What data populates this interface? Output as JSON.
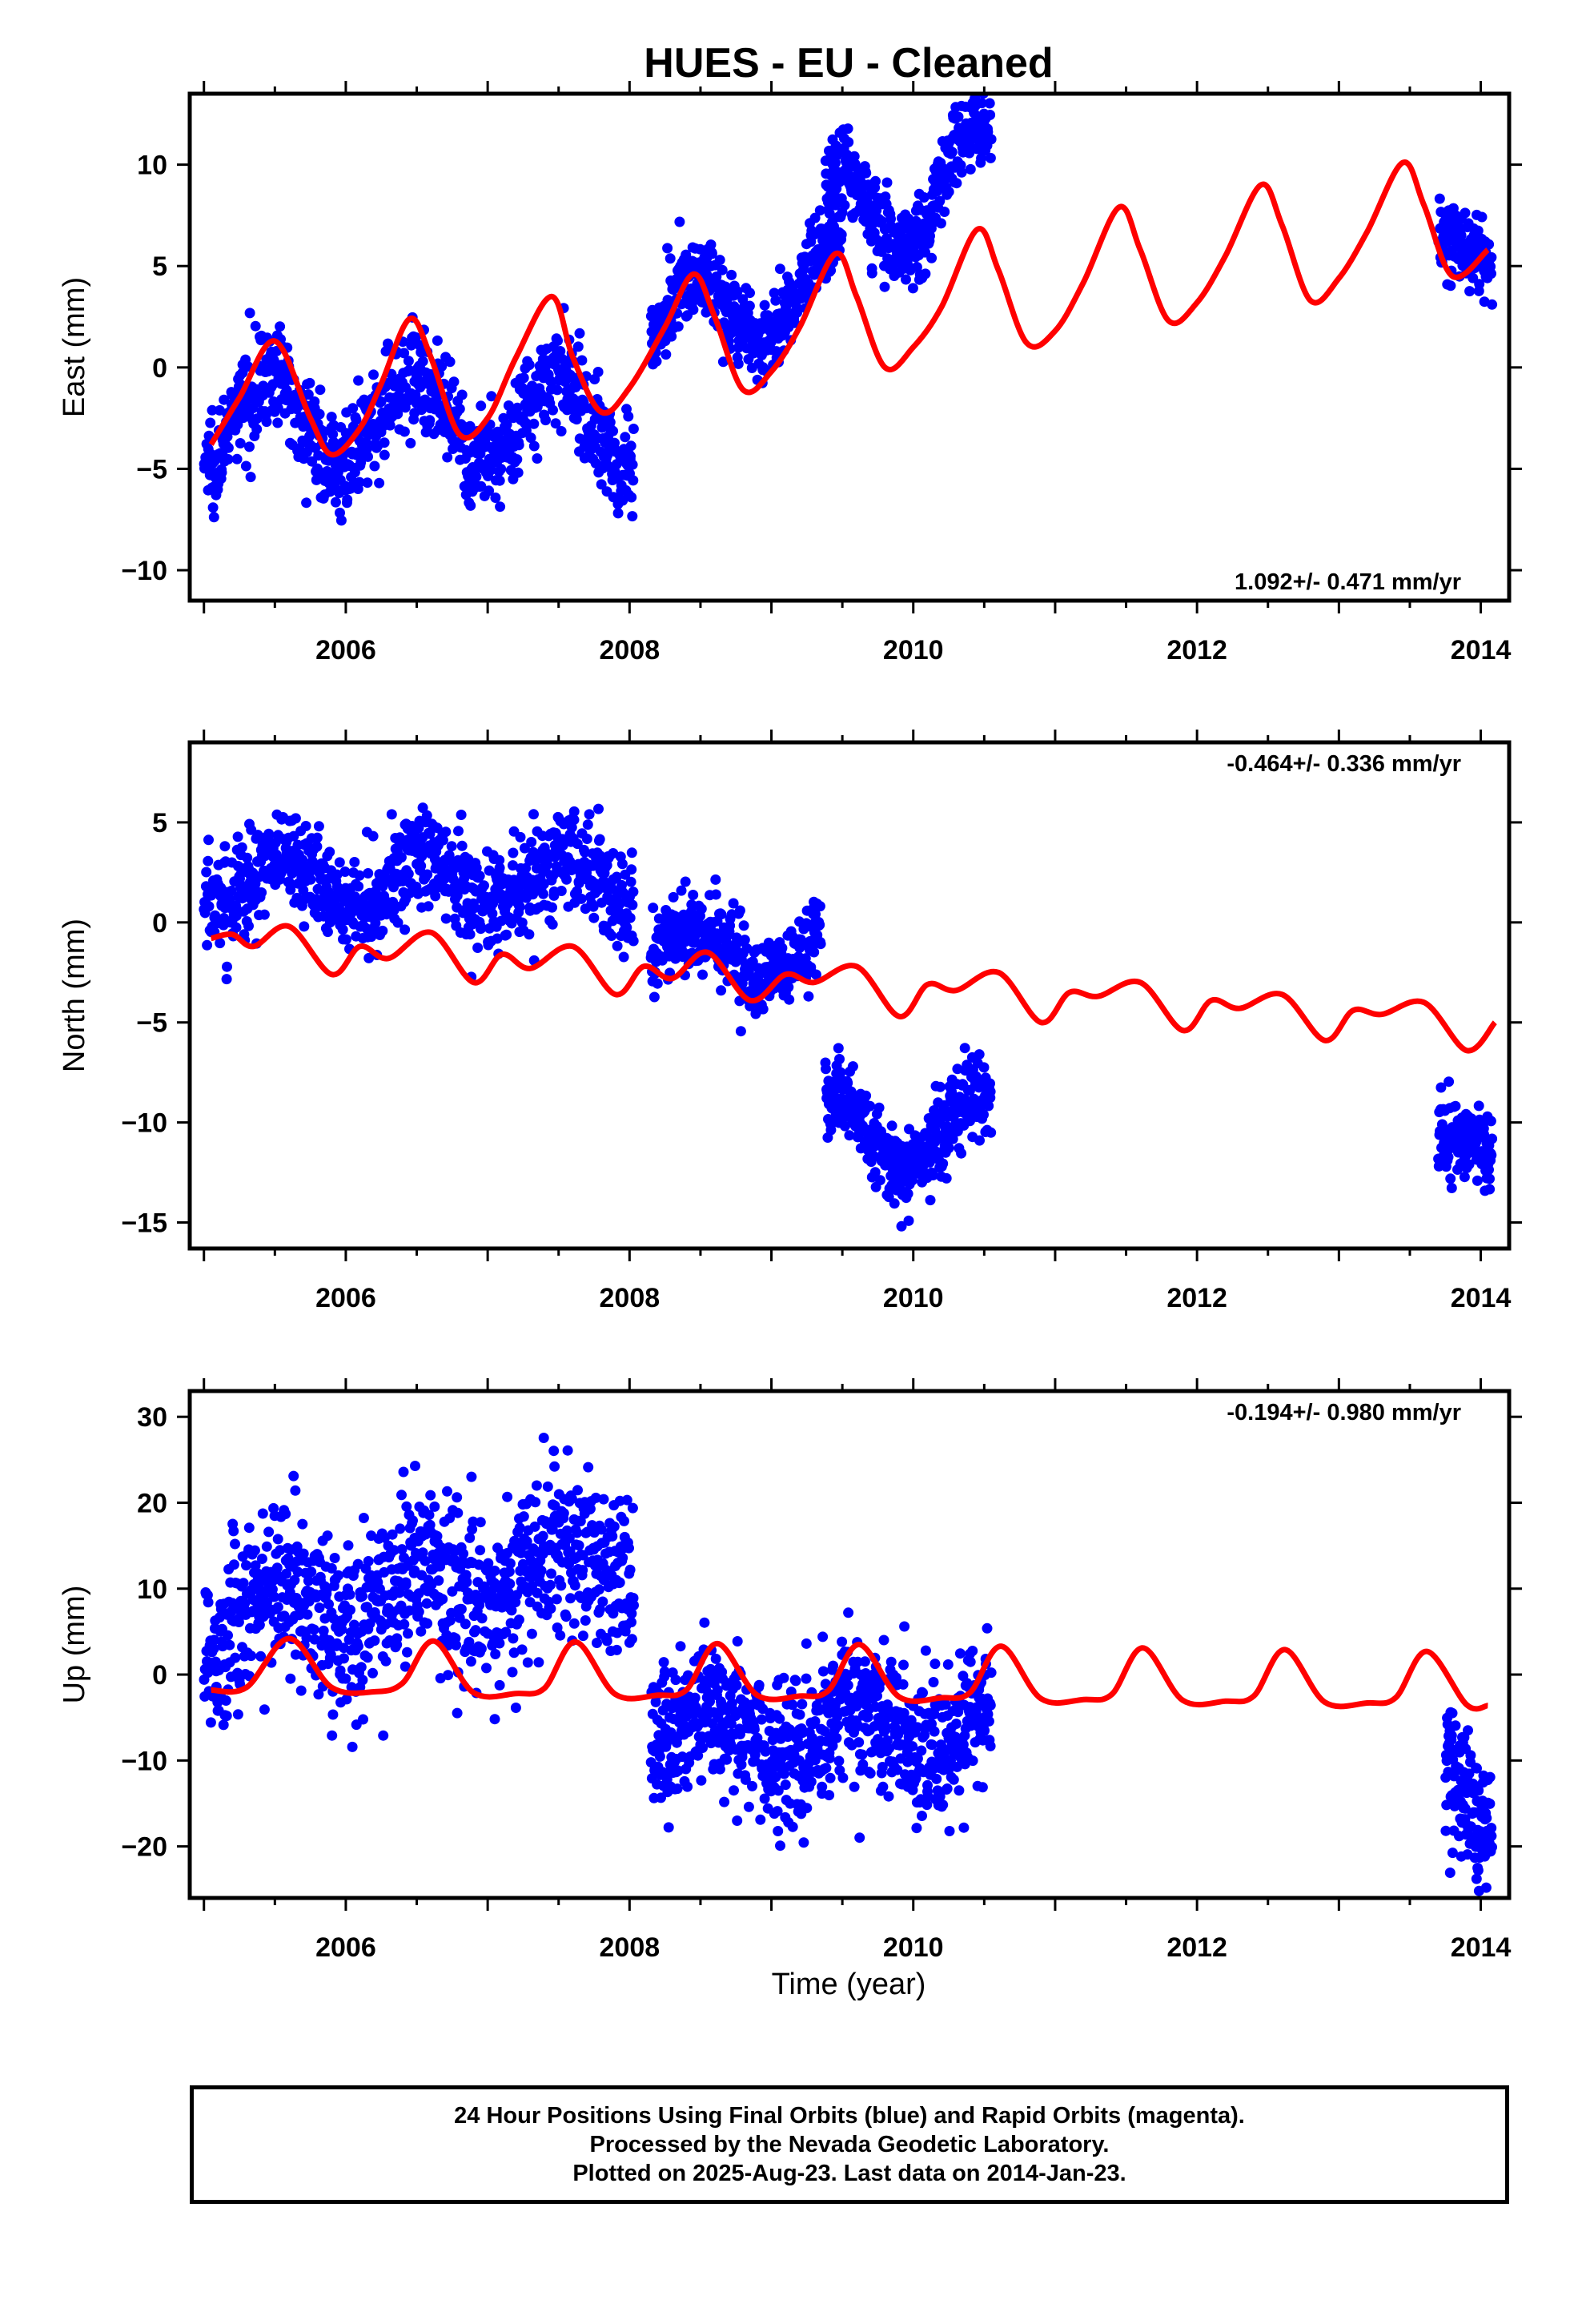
{
  "title": "HUES  - EU - Cleaned",
  "x_axis_title": "Time (year)",
  "colors": {
    "final_orbits": "#0000ff",
    "model": "#ff0000",
    "frame": "#000000"
  },
  "chart_data": [
    {
      "type": "scatter",
      "ylabel": "East (mm)",
      "xlim": [
        2004.9,
        2014.2
      ],
      "ylim": [
        -11.5,
        13.5
      ],
      "x_ticks": [
        2006,
        2008,
        2010,
        2012,
        2014
      ],
      "y_ticks": [
        -10,
        -5,
        0,
        5,
        10
      ],
      "rate": "1.092+/- 0.471 mm/yr",
      "rate_position": "bottom-right",
      "model_line": {
        "x": [
          2005.05,
          2005.25,
          2005.5,
          2005.75,
          2005.9,
          2006.1,
          2006.25,
          2006.45,
          2006.6,
          2006.8,
          2007.0,
          2007.2,
          2007.45,
          2007.6,
          2007.8,
          2008.0,
          2008.25,
          2008.45,
          2008.6,
          2008.8,
          2009.0,
          2009.2,
          2009.45,
          2009.6,
          2009.8,
          2010.0,
          2010.2,
          2010.45,
          2010.6,
          2010.8,
          2011.0,
          2011.2,
          2011.45,
          2011.6,
          2011.8,
          2012.0,
          2012.2,
          2012.45,
          2012.6,
          2012.8,
          2013.0,
          2013.2,
          2013.45,
          2013.6,
          2013.8,
          2014.05
        ],
        "y": [
          -3.8,
          -1.5,
          1.3,
          -2.5,
          -4.3,
          -3.0,
          -0.8,
          2.4,
          0.5,
          -3.3,
          -2.5,
          0.5,
          3.5,
          0.5,
          -2.2,
          -1.0,
          2.0,
          4.6,
          2.5,
          -1.1,
          -0.2,
          2.0,
          5.6,
          3.5,
          0.0,
          1.0,
          3.0,
          6.8,
          4.8,
          1.2,
          1.8,
          4.2,
          7.9,
          5.8,
          2.3,
          3.2,
          5.5,
          9.0,
          7.0,
          3.3,
          4.4,
          6.7,
          10.1,
          8.0,
          4.5,
          5.8
        ]
      },
      "scatter_segments": [
        {
          "x_start": 2005.0,
          "x_end": 2008.03,
          "period_years": 1.0,
          "trend_mm_per_yr": 0.0,
          "offset": -2.6,
          "amplitude": 2.2,
          "peak_year": 2005.47,
          "noise_sd": 1.2,
          "points": 900
        },
        {
          "x_start": 2008.15,
          "x_end": 2009.5,
          "period_years": 1.0,
          "trend_mm_per_yr": 2.0,
          "offset": 1.8,
          "amplitude": 2.2,
          "peak_year": 2008.45,
          "noise_sd": 1.0,
          "points": 420
        },
        {
          "x_start": 2009.38,
          "x_end": 2010.55,
          "period_years": 1.0,
          "trend_mm_per_yr": 2.5,
          "offset": 7.0,
          "amplitude": 2.5,
          "peak_year": 2009.45,
          "noise_sd": 1.1,
          "points": 380
        },
        {
          "x_start": 2013.7,
          "x_end": 2014.08,
          "period_years": 1.0,
          "trend_mm_per_yr": 0.0,
          "offset": 5.6,
          "amplitude": 0.8,
          "peak_year": 2013.7,
          "noise_sd": 0.9,
          "points": 130
        }
      ]
    },
    {
      "type": "scatter",
      "ylabel": "North (mm)",
      "xlim": [
        2004.9,
        2014.2
      ],
      "ylim": [
        -16.3,
        9.0
      ],
      "x_ticks": [
        2006,
        2008,
        2010,
        2012,
        2014
      ],
      "y_ticks": [
        -15,
        -10,
        -5,
        0,
        5
      ],
      "rate": "-0.464+/- 0.336 mm/yr",
      "rate_position": "top-right",
      "model_line": {
        "x": [
          2005.05,
          2005.2,
          2005.35,
          2005.6,
          2005.9,
          2006.1,
          2006.3,
          2006.6,
          2006.9,
          2007.1,
          2007.3,
          2007.6,
          2007.9,
          2008.1,
          2008.3,
          2008.55,
          2008.85,
          2009.1,
          2009.3,
          2009.6,
          2009.9,
          2010.1,
          2010.3,
          2010.6,
          2010.9,
          2011.1,
          2011.3,
          2011.6,
          2011.9,
          2012.1,
          2012.3,
          2012.6,
          2012.9,
          2013.1,
          2013.3,
          2013.6,
          2013.9,
          2014.1
        ],
        "y": [
          -0.8,
          -0.6,
          -1.2,
          -0.2,
          -2.6,
          -1.2,
          -1.8,
          -0.5,
          -3.0,
          -1.6,
          -2.3,
          -1.2,
          -3.6,
          -2.2,
          -2.8,
          -1.5,
          -3.9,
          -2.6,
          -3.0,
          -2.2,
          -4.7,
          -3.1,
          -3.4,
          -2.5,
          -5.0,
          -3.5,
          -3.7,
          -3.0,
          -5.4,
          -3.9,
          -4.3,
          -3.6,
          -5.9,
          -4.4,
          -4.6,
          -4.0,
          -6.4,
          -5.0
        ]
      },
      "scatter_segments": [
        {
          "x_start": 2005.0,
          "x_end": 2008.03,
          "period_years": 1.0,
          "trend_mm_per_yr": 0.0,
          "offset": 2.0,
          "amplitude": 1.2,
          "peak_year": 2006.55,
          "noise_sd": 1.3,
          "points": 900
        },
        {
          "x_start": 2008.15,
          "x_end": 2009.35,
          "period_years": 1.0,
          "trend_mm_per_yr": 0.0,
          "offset": -1.5,
          "amplitude": 1.3,
          "peak_year": 2008.45,
          "noise_sd": 1.0,
          "points": 380
        },
        {
          "x_start": 2009.38,
          "x_end": 2010.55,
          "period_years": 1.0,
          "trend_mm_per_yr": 0.0,
          "offset": -10.5,
          "amplitude": 1.8,
          "peak_year": 2009.45,
          "noise_sd": 1.0,
          "points": 380
        },
        {
          "x_start": 2013.7,
          "x_end": 2014.08,
          "period_years": 1.0,
          "trend_mm_per_yr": 0.0,
          "offset": -11.0,
          "amplitude": 0.5,
          "peak_year": 2013.7,
          "noise_sd": 1.0,
          "points": 130
        }
      ]
    },
    {
      "type": "scatter",
      "ylabel": "Up (mm)",
      "xlim": [
        2004.9,
        2014.2
      ],
      "ylim": [
        -26.0,
        33.0
      ],
      "x_ticks": [
        2006,
        2008,
        2010,
        2012,
        2014
      ],
      "y_ticks": [
        -20,
        -10,
        0,
        10,
        20,
        30
      ],
      "rate": "-0.194+/- 0.980 mm/yr",
      "rate_position": "top-right",
      "model_line": {
        "x": [
          2005.05,
          2005.3,
          2005.6,
          2005.9,
          2006.2,
          2006.4,
          2006.62,
          2006.9,
          2007.2,
          2007.4,
          2007.62,
          2007.9,
          2008.2,
          2008.4,
          2008.62,
          2008.9,
          2009.2,
          2009.4,
          2009.62,
          2009.9,
          2010.2,
          2010.4,
          2010.62,
          2010.9,
          2011.2,
          2011.4,
          2011.62,
          2011.9,
          2012.2,
          2012.4,
          2012.62,
          2012.9,
          2013.2,
          2013.4,
          2013.62,
          2013.9,
          2014.05
        ],
        "y": [
          -1.8,
          -1.5,
          4.2,
          -1.5,
          -2.0,
          -1.0,
          3.9,
          -2.1,
          -2.2,
          -1.6,
          3.8,
          -2.3,
          -2.4,
          -1.8,
          3.6,
          -2.4,
          -2.5,
          -1.9,
          3.5,
          -2.6,
          -2.7,
          -2.1,
          3.3,
          -2.8,
          -2.9,
          -2.3,
          3.1,
          -3.0,
          -3.1,
          -2.5,
          2.9,
          -3.2,
          -3.3,
          -2.7,
          2.7,
          -3.5,
          -3.6
        ]
      },
      "scatter_segments": [
        {
          "x_start": 2005.0,
          "x_end": 2008.03,
          "period_years": 1.0,
          "trend_mm_per_yr": 2.5,
          "offset": 6.0,
          "amplitude": 3.5,
          "peak_year": 2007.5,
          "noise_sd": 5.0,
          "points": 900
        },
        {
          "x_start": 2008.15,
          "x_end": 2010.55,
          "period_years": 1.0,
          "trend_mm_per_yr": 0.0,
          "offset": -6.5,
          "amplitude": 3.0,
          "peak_year": 2008.6,
          "noise_sd": 4.3,
          "points": 800
        },
        {
          "x_start": 2013.75,
          "x_end": 2014.08,
          "period_years": 1.0,
          "trend_mm_per_yr": -30.0,
          "offset": -10.0,
          "amplitude": 0.0,
          "peak_year": 2013.9,
          "noise_sd": 4.0,
          "points": 130
        }
      ]
    }
  ],
  "footer": {
    "line1": "24 Hour Positions Using Final Orbits (blue) and Rapid Orbits (magenta).",
    "line2": "Processed by the Nevada Geodetic Laboratory.",
    "line3": "Plotted on 2025-Aug-23. Last data on 2014-Jan-23."
  }
}
